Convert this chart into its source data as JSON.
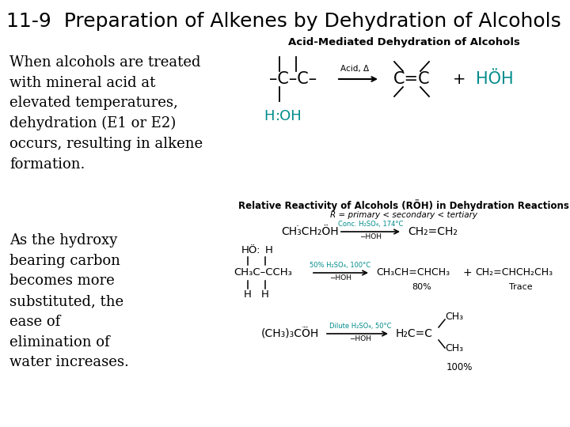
{
  "title": "11-9  Preparation of Alkenes by Dehydration of Alcohols",
  "title_fontsize": 18,
  "background_color": "#ffffff",
  "text_color": "#000000",
  "cyan_color": "#008B8B",
  "orange_color": "#008B8B",
  "left_text_1": "When alcohols are treated\nwith mineral acid at\nelevated temperatures,\ndehydration (E1 or E2)\noccurs, resulting in alkene\nformation.",
  "left_text_2": "As the hydroxy\nbearing carbon\nbecomes more\nsubstituted, the\nease of\nelimination of\nwater increases.",
  "fontsize_body": 13,
  "fontsize_small": 7,
  "fontsize_chem": 11,
  "fontsize_chem_sm": 8.5
}
